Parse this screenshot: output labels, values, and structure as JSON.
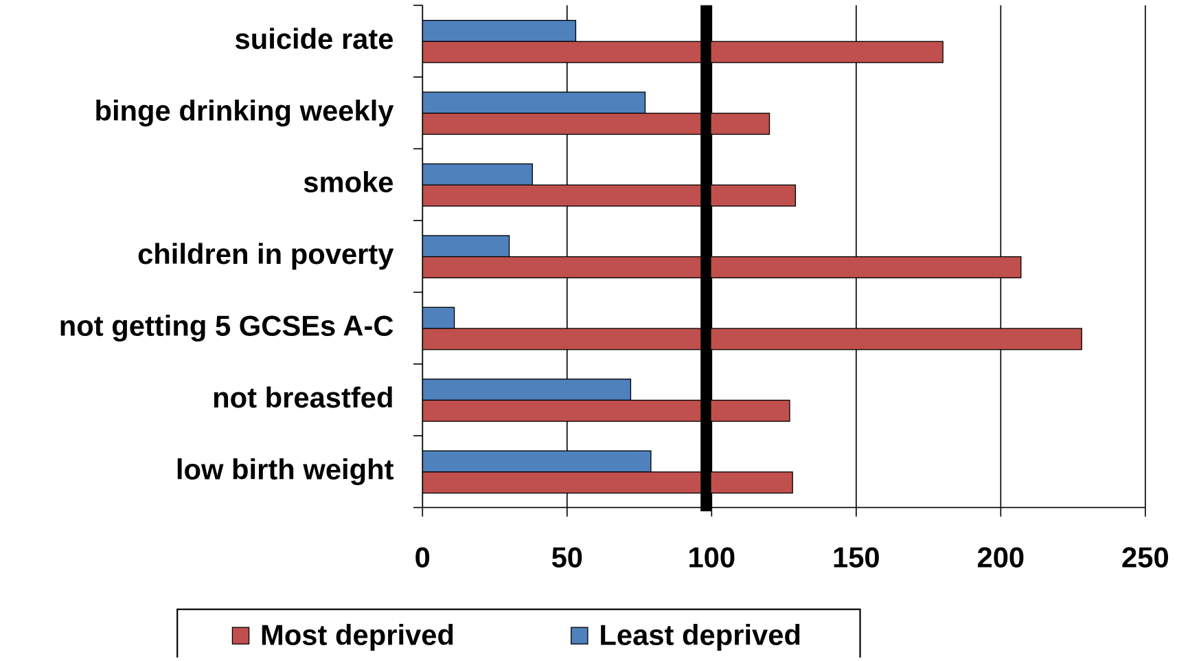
{
  "chart_data": {
    "type": "hbar",
    "categories": [
      "suicide rate",
      "binge drinking weekly",
      "smoke",
      "children in poverty",
      "not getting 5 GCSEs A-C",
      "not breastfed",
      "low birth weight"
    ],
    "series": [
      {
        "name": "Most deprived",
        "color": "#c0504d",
        "values": [
          180,
          120,
          129,
          207,
          228,
          127,
          128
        ]
      },
      {
        "name": "Least deprived",
        "color": "#4f81bd",
        "values": [
          53,
          77,
          38,
          30,
          11,
          72,
          79
        ]
      }
    ],
    "xlim": [
      0,
      250
    ],
    "xticks": [
      0,
      50,
      100,
      150,
      200,
      250
    ],
    "grid": true,
    "reference_line": 98,
    "legend": "bottom"
  }
}
